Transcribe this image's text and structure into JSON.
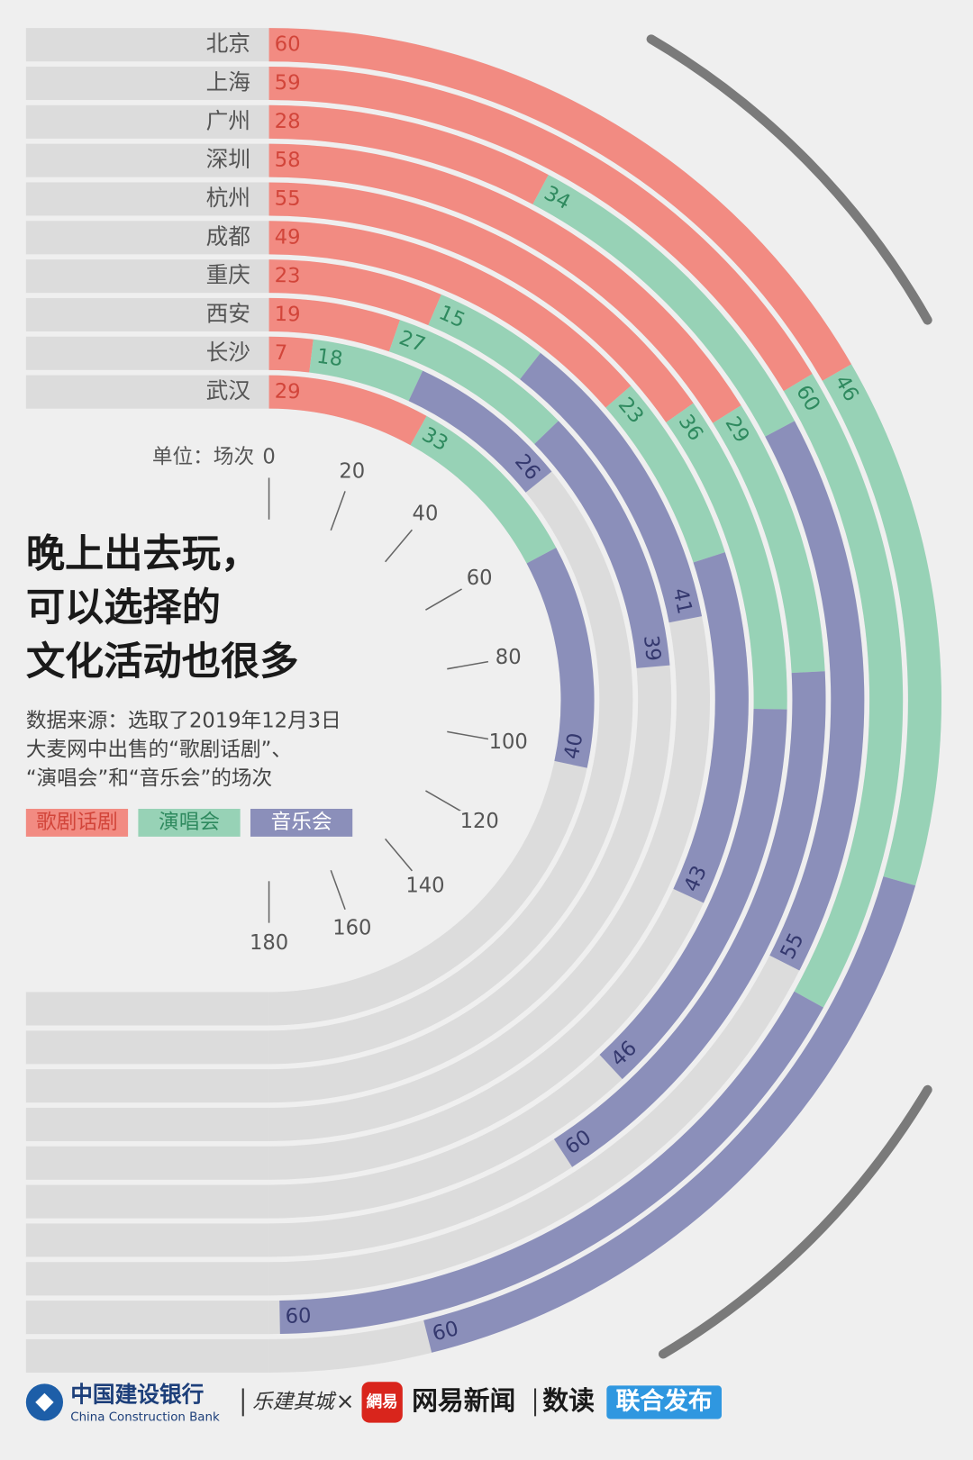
{
  "chart_data": {
    "type": "radial_stacked_bar",
    "title": [
      "晚上出去玩，",
      "可以选择的",
      "文化活动也很多"
    ],
    "source": [
      "数据来源：选取了2019年12月3日",
      "大麦网中出售的“歌剧话剧”、",
      "“演唱会”和“音乐会”的场次"
    ],
    "axis_label": "单位：场次",
    "categories": [
      "北京",
      "上海",
      "广州",
      "深圳",
      "杭州",
      "成都",
      "重庆",
      "西安",
      "长沙",
      "武汉"
    ],
    "series": [
      {
        "name": "歌剧话剧",
        "color": "#f28b82",
        "values": [
          60,
          59,
          28,
          58,
          55,
          49,
          23,
          19,
          7,
          29
        ]
      },
      {
        "name": "演唱会",
        "color": "#97d2b6",
        "values": [
          46,
          60,
          34,
          29,
          36,
          23,
          15,
          27,
          18,
          33
        ]
      },
      {
        "name": "音乐会",
        "color": "#8b8fba",
        "values": [
          60,
          60,
          55,
          60,
          46,
          43,
          41,
          39,
          26,
          40
        ]
      }
    ],
    "ylim": [
      0,
      180
    ],
    "yticks": [
      0,
      20,
      40,
      60,
      80,
      100,
      120,
      140,
      160,
      180
    ]
  },
  "footer": {
    "bank": "中国建设银行",
    "bank_en": "China Construction Bank",
    "partner": "乐建其城",
    "times": "×",
    "netease_logo": "網易",
    "netease": "网易新闻",
    "shudu": "数读",
    "release": "联合发布"
  }
}
